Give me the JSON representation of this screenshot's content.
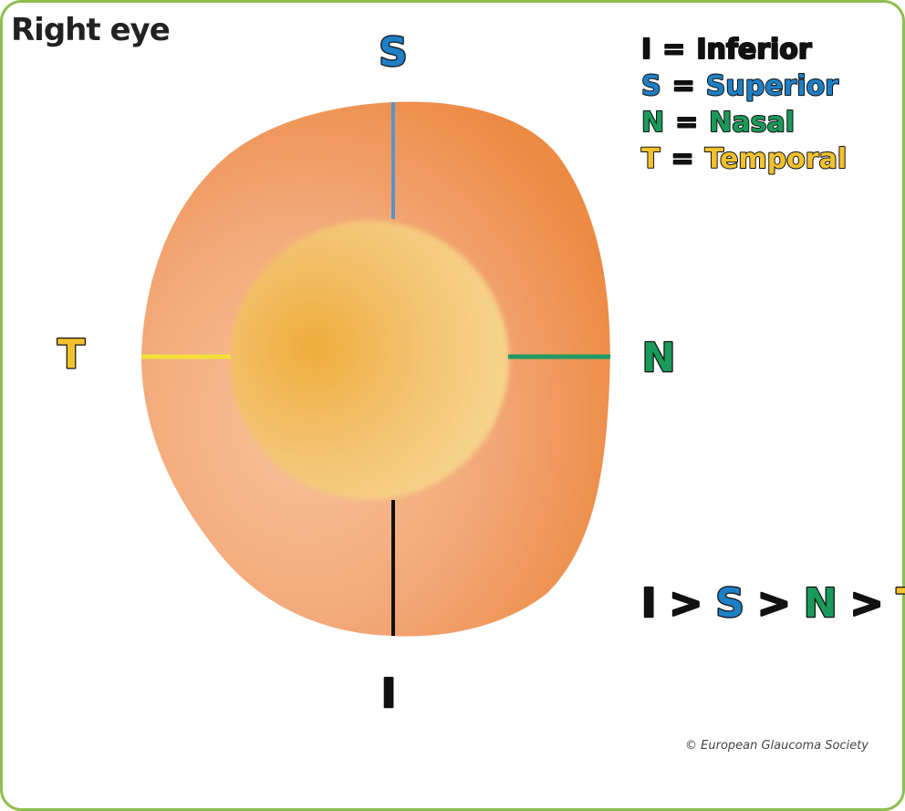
{
  "title": "Right eye",
  "axes": {
    "superior": "S",
    "temporal": "T",
    "nasal": "N",
    "inferior": "I"
  },
  "legend": [
    {
      "letter": "I",
      "sign": "=",
      "word": "Inferior"
    },
    {
      "letter": "S",
      "sign": "=",
      "word": "Superior"
    },
    {
      "letter": "N",
      "sign": "=",
      "word": "Nasal"
    },
    {
      "letter": "T",
      "sign": "=",
      "word": "Temporal"
    }
  ],
  "rule": {
    "items": [
      "I",
      "S",
      "N",
      "T"
    ],
    "separator": ">"
  },
  "copyright": "© European Glaucoma Society"
}
